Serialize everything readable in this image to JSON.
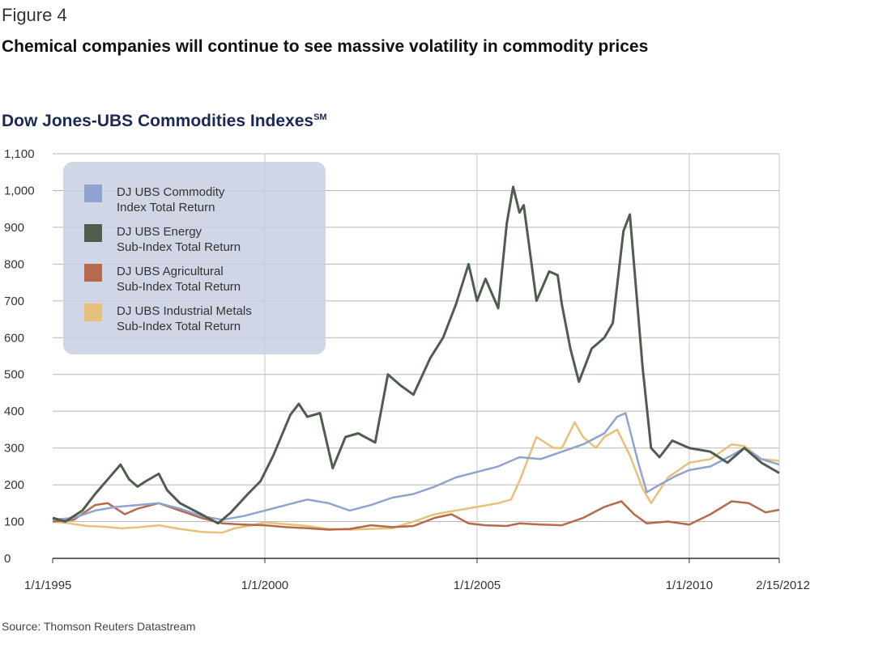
{
  "figure_label": "Figure 4",
  "figure_title": "Chemical companies will continue to see massive volatility in commodity prices",
  "source": "Source: Thomson Reuters Datastream",
  "chart_data": {
    "type": "line",
    "title": "Dow Jones-UBS Commodities Indexes",
    "title_mark": "SM",
    "xlabel": "",
    "ylabel": "",
    "ylim": [
      0,
      1100
    ],
    "y_ticks": [
      "0",
      "100",
      "200",
      "300",
      "400",
      "500",
      "600",
      "700",
      "800",
      "900",
      "1,000",
      "1,100"
    ],
    "x_tick_labels": [
      {
        "label": "1/1/1995",
        "x": 1995.0
      },
      {
        "label": "1/1/2000",
        "x": 2000.0
      },
      {
        "label": "1/1/2005",
        "x": 2005.0
      },
      {
        "label": "1/1/2010",
        "x": 2010.0
      },
      {
        "label": "2/15/2012",
        "x": 2012.12
      }
    ],
    "xlim": [
      1995.0,
      2012.12
    ],
    "grid": true,
    "legend_position": "top-left",
    "series": [
      {
        "name": "DJ UBS Commodity Index Total Return",
        "color": "#8ea4cf",
        "points": [
          [
            1995.0,
            105
          ],
          [
            1995.5,
            110
          ],
          [
            1996.0,
            130
          ],
          [
            1996.5,
            140
          ],
          [
            1997.0,
            145
          ],
          [
            1997.5,
            150
          ],
          [
            1998.0,
            135
          ],
          [
            1998.5,
            115
          ],
          [
            1999.0,
            105
          ],
          [
            1999.5,
            115
          ],
          [
            2000.0,
            130
          ],
          [
            2000.5,
            145
          ],
          [
            2001.0,
            160
          ],
          [
            2001.5,
            150
          ],
          [
            2002.0,
            130
          ],
          [
            2002.5,
            145
          ],
          [
            2003.0,
            165
          ],
          [
            2003.5,
            175
          ],
          [
            2004.0,
            195
          ],
          [
            2004.5,
            220
          ],
          [
            2005.0,
            235
          ],
          [
            2005.5,
            250
          ],
          [
            2006.0,
            275
          ],
          [
            2006.5,
            270
          ],
          [
            2007.0,
            290
          ],
          [
            2007.5,
            310
          ],
          [
            2008.0,
            340
          ],
          [
            2008.3,
            385
          ],
          [
            2008.5,
            395
          ],
          [
            2008.8,
            260
          ],
          [
            2009.0,
            180
          ],
          [
            2009.3,
            200
          ],
          [
            2009.7,
            225
          ],
          [
            2010.0,
            240
          ],
          [
            2010.5,
            250
          ],
          [
            2011.0,
            280
          ],
          [
            2011.3,
            300
          ],
          [
            2011.7,
            270
          ],
          [
            2012.12,
            255
          ]
        ]
      },
      {
        "name": "DJ UBS Energy Sub-Index Total Return",
        "color": "#4f5d4f",
        "points": [
          [
            1995.0,
            110
          ],
          [
            1995.3,
            100
          ],
          [
            1995.7,
            130
          ],
          [
            1996.0,
            175
          ],
          [
            1996.3,
            215
          ],
          [
            1996.6,
            255
          ],
          [
            1996.8,
            215
          ],
          [
            1997.0,
            195
          ],
          [
            1997.2,
            210
          ],
          [
            1997.5,
            230
          ],
          [
            1997.7,
            185
          ],
          [
            1998.0,
            150
          ],
          [
            1998.5,
            120
          ],
          [
            1998.9,
            95
          ],
          [
            1999.2,
            125
          ],
          [
            1999.6,
            175
          ],
          [
            1999.9,
            210
          ],
          [
            2000.2,
            280
          ],
          [
            2000.6,
            390
          ],
          [
            2000.8,
            420
          ],
          [
            2001.0,
            385
          ],
          [
            2001.3,
            395
          ],
          [
            2001.6,
            245
          ],
          [
            2001.9,
            330
          ],
          [
            2002.2,
            340
          ],
          [
            2002.6,
            315
          ],
          [
            2002.9,
            500
          ],
          [
            2003.2,
            470
          ],
          [
            2003.5,
            445
          ],
          [
            2003.9,
            545
          ],
          [
            2004.2,
            600
          ],
          [
            2004.5,
            690
          ],
          [
            2004.8,
            800
          ],
          [
            2005.0,
            700
          ],
          [
            2005.2,
            760
          ],
          [
            2005.5,
            680
          ],
          [
            2005.7,
            910
          ],
          [
            2005.85,
            1010
          ],
          [
            2006.0,
            940
          ],
          [
            2006.1,
            960
          ],
          [
            2006.4,
            700
          ],
          [
            2006.7,
            780
          ],
          [
            2006.9,
            770
          ],
          [
            2007.0,
            690
          ],
          [
            2007.2,
            570
          ],
          [
            2007.4,
            480
          ],
          [
            2007.7,
            570
          ],
          [
            2008.0,
            600
          ],
          [
            2008.2,
            640
          ],
          [
            2008.45,
            890
          ],
          [
            2008.6,
            935
          ],
          [
            2008.9,
            520
          ],
          [
            2009.1,
            300
          ],
          [
            2009.3,
            275
          ],
          [
            2009.6,
            320
          ],
          [
            2010.0,
            300
          ],
          [
            2010.5,
            290
          ],
          [
            2010.9,
            260
          ],
          [
            2011.3,
            300
          ],
          [
            2011.7,
            260
          ],
          [
            2012.12,
            232
          ]
        ]
      },
      {
        "name": "DJ UBS Agricultural Sub-Index Total Return",
        "color": "#b66a4b",
        "points": [
          [
            1995.0,
            100
          ],
          [
            1995.5,
            105
          ],
          [
            1996.0,
            145
          ],
          [
            1996.3,
            150
          ],
          [
            1996.7,
            120
          ],
          [
            1997.0,
            135
          ],
          [
            1997.5,
            150
          ],
          [
            1998.0,
            130
          ],
          [
            1998.5,
            110
          ],
          [
            1999.0,
            95
          ],
          [
            1999.5,
            92
          ],
          [
            2000.0,
            90
          ],
          [
            2000.5,
            85
          ],
          [
            2001.0,
            82
          ],
          [
            2001.5,
            78
          ],
          [
            2002.0,
            80
          ],
          [
            2002.5,
            90
          ],
          [
            2003.0,
            85
          ],
          [
            2003.5,
            88
          ],
          [
            2004.0,
            110
          ],
          [
            2004.4,
            120
          ],
          [
            2004.8,
            95
          ],
          [
            2005.2,
            90
          ],
          [
            2005.7,
            88
          ],
          [
            2006.0,
            95
          ],
          [
            2006.5,
            92
          ],
          [
            2007.0,
            90
          ],
          [
            2007.5,
            110
          ],
          [
            2008.0,
            140
          ],
          [
            2008.4,
            155
          ],
          [
            2008.7,
            120
          ],
          [
            2009.0,
            95
          ],
          [
            2009.5,
            100
          ],
          [
            2010.0,
            92
          ],
          [
            2010.5,
            120
          ],
          [
            2011.0,
            155
          ],
          [
            2011.4,
            150
          ],
          [
            2011.8,
            125
          ],
          [
            2012.12,
            132
          ]
        ]
      },
      {
        "name": "DJ UBS Industrial Metals Sub-Index Total Return",
        "color": "#e7c07a",
        "points": [
          [
            1995.0,
            100
          ],
          [
            1995.4,
            95
          ],
          [
            1995.8,
            88
          ],
          [
            1996.2,
            86
          ],
          [
            1996.6,
            82
          ],
          [
            1997.0,
            84
          ],
          [
            1997.5,
            90
          ],
          [
            1998.0,
            80
          ],
          [
            1998.5,
            72
          ],
          [
            1999.0,
            70
          ],
          [
            1999.3,
            82
          ],
          [
            1999.7,
            90
          ],
          [
            2000.0,
            98
          ],
          [
            2000.5,
            93
          ],
          [
            2001.0,
            88
          ],
          [
            2001.5,
            80
          ],
          [
            2002.0,
            78
          ],
          [
            2002.5,
            80
          ],
          [
            2003.0,
            82
          ],
          [
            2003.5,
            100
          ],
          [
            2004.0,
            120
          ],
          [
            2004.5,
            130
          ],
          [
            2005.0,
            140
          ],
          [
            2005.5,
            150
          ],
          [
            2005.8,
            160
          ],
          [
            2006.0,
            210
          ],
          [
            2006.4,
            330
          ],
          [
            2006.8,
            300
          ],
          [
            2007.0,
            300
          ],
          [
            2007.3,
            370
          ],
          [
            2007.5,
            330
          ],
          [
            2007.8,
            300
          ],
          [
            2008.0,
            330
          ],
          [
            2008.3,
            350
          ],
          [
            2008.6,
            280
          ],
          [
            2008.9,
            190
          ],
          [
            2009.1,
            150
          ],
          [
            2009.5,
            220
          ],
          [
            2010.0,
            260
          ],
          [
            2010.5,
            270
          ],
          [
            2011.0,
            310
          ],
          [
            2011.3,
            305
          ],
          [
            2011.7,
            270
          ],
          [
            2012.12,
            265
          ]
        ]
      }
    ]
  }
}
